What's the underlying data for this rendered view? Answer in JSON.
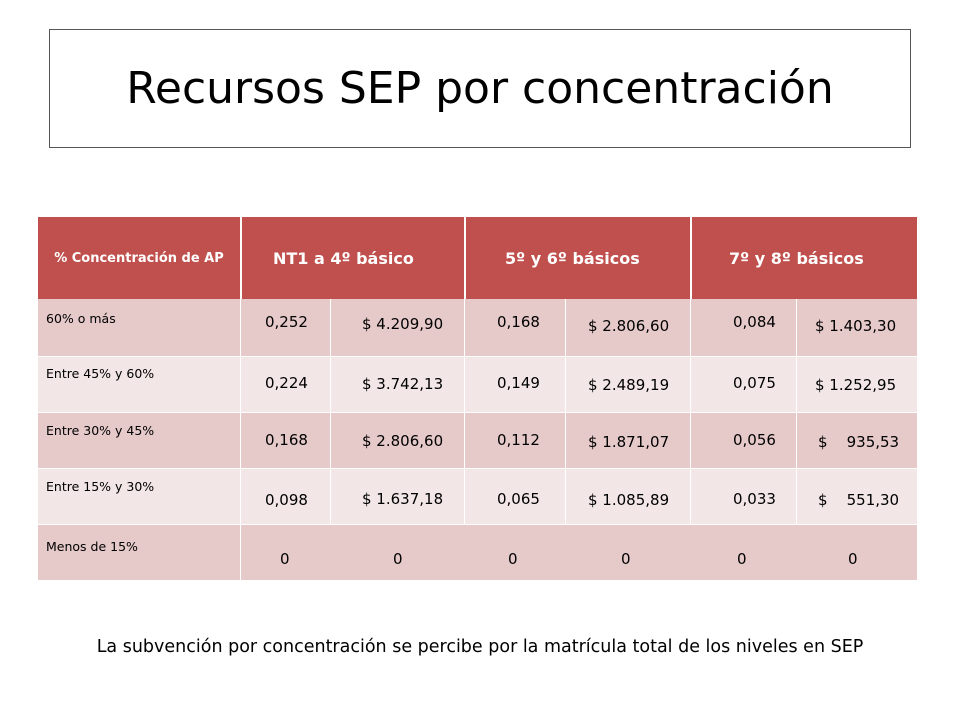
{
  "title": "Recursos SEP por concentración",
  "table": {
    "headers": [
      "% Concentración de AP",
      "NT1 a 4º básico",
      "5º y 6º básicos",
      "7º y 8º básicos"
    ],
    "rows": [
      {
        "label": "60% o más",
        "cells": [
          "0,252",
          "$ 4.209,90",
          "0,168",
          "$ 2.806,60",
          "0,084",
          "$ 1.403,30"
        ]
      },
      {
        "label": "Entre 45% y 60%",
        "cells": [
          "0,224",
          "$ 3.742,13",
          "0,149",
          "$ 2.489,19",
          "0,075",
          "$ 1.252,95"
        ]
      },
      {
        "label": "Entre 30% y 45%",
        "cells": [
          "0,168",
          "$ 2.806,60",
          "0,112",
          "$ 1.871,07",
          "0,056",
          "$    935,53"
        ]
      },
      {
        "label": "Entre 15% y 30%",
        "cells": [
          "0,098",
          "$ 1.637,18",
          "0,065",
          "$ 1.085,89",
          "0,033",
          "$    551,30"
        ]
      },
      {
        "label": "Menos de 15%",
        "cells": [
          "0",
          "0",
          "0",
          "0",
          "0",
          "0"
        ]
      }
    ]
  },
  "footer": "La subvención por concentración se percibe por la matrícula total de los niveles en SEP",
  "colors": {
    "header": "#c0504d",
    "row_dark": "#e6c9c9",
    "row_light": "#f2e6e6"
  }
}
